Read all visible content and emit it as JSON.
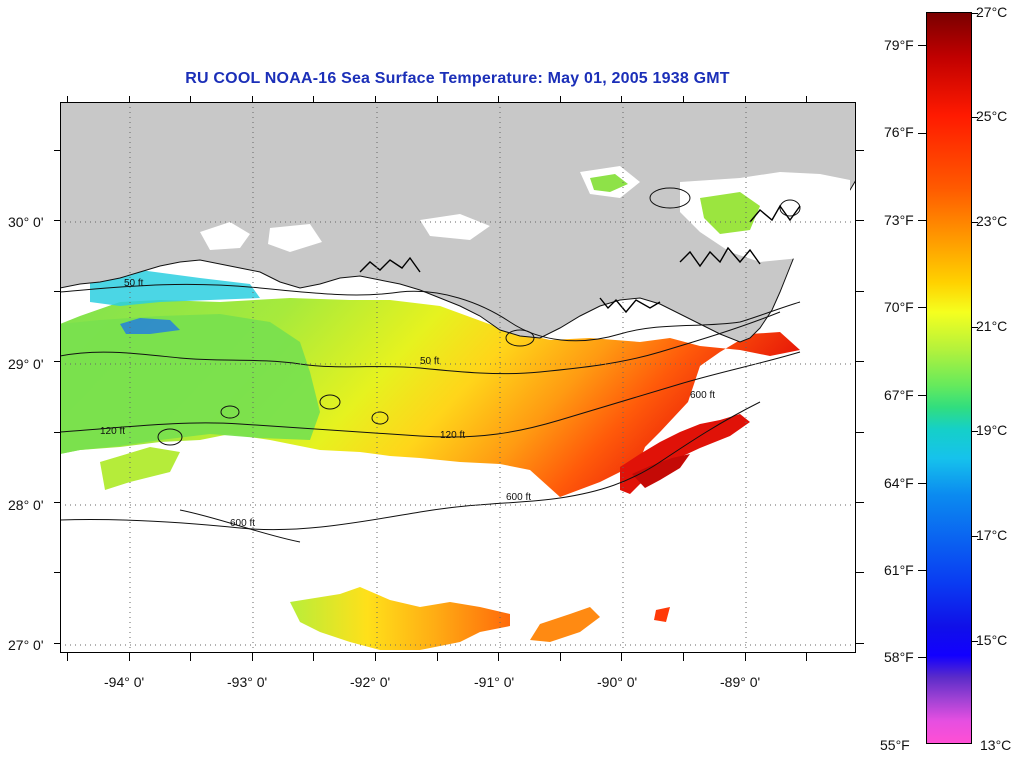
{
  "title": "RU COOL  NOAA-16  Sea Surface Temperature:  May 01, 2005 1938 GMT",
  "map": {
    "latitude_labels": [
      "30° 0'",
      "29° 0'",
      "28° 0'",
      "27° 0'"
    ],
    "longitude_labels": [
      "-94° 0'",
      "-93° 0'",
      "-92° 0'",
      "-91° 0'",
      "-90° 0'",
      "-89° 0'"
    ],
    "isobath_labels": [
      "50 ft",
      "120 ft",
      "600 ft"
    ],
    "colors": {
      "land": "#c8c8c8",
      "cloud_nodata": "#ffffff",
      "contour": "#111111"
    }
  },
  "colorbar": {
    "fahrenheit_labels": [
      "79°F",
      "76°F",
      "73°F",
      "70°F",
      "67°F",
      "64°F",
      "61°F",
      "58°F",
      "55°F"
    ],
    "celsius_labels": [
      "27°C",
      "25°C",
      "23°C",
      "21°C",
      "19°C",
      "17°C",
      "15°C",
      "13°C"
    ],
    "range_celsius": [
      13,
      27
    ],
    "range_fahrenheit": [
      55,
      80.6
    ]
  }
}
